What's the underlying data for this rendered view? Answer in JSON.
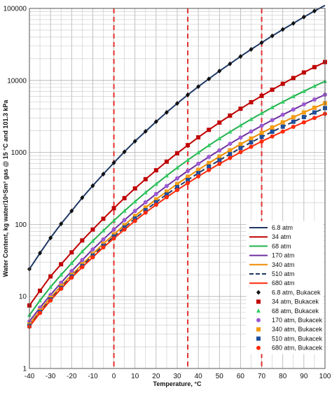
{
  "chart_data": {
    "type": "line",
    "xlabel": "Temperature, °C",
    "ylabel": "Water Content, kg water/10⁶Sm³ gas @ 15 °C and 101.3 kPa",
    "xlim": [
      -40,
      100
    ],
    "ylim": [
      1,
      100000
    ],
    "yscale": "log",
    "x_ticks": [
      -40,
      -30,
      -20,
      -10,
      0,
      10,
      20,
      30,
      40,
      50,
      60,
      70,
      80,
      90,
      100
    ],
    "y_ticks": [
      1,
      10,
      100,
      1000,
      10000,
      100000
    ],
    "y_tick_labels": [
      "1",
      "10",
      "100",
      "1000",
      "10000",
      "100000"
    ],
    "grid": true,
    "legend_position": "bottom-right",
    "vertical_reference_lines": {
      "x": [
        0,
        35,
        70
      ],
      "color": "#e53030",
      "style": "dashed"
    },
    "x": [
      -40,
      -35,
      -30,
      -25,
      -20,
      -15,
      -10,
      -5,
      0,
      5,
      10,
      15,
      20,
      25,
      30,
      35,
      40,
      45,
      50,
      55,
      60,
      65,
      70,
      75,
      80,
      85,
      90,
      95,
      100
    ],
    "series": [
      {
        "name": "6.8 atm",
        "color": "#1f3864",
        "values": [
          24,
          40,
          65,
          102,
          154,
          235,
          345,
          500,
          720,
          1020,
          1430,
          1960,
          2680,
          3600,
          4800,
          6300,
          8200,
          10500,
          13500,
          17000,
          21500,
          27000,
          33500,
          41500,
          51000,
          62000,
          76000,
          92000,
          110000
        ]
      },
      {
        "name": "34 atm",
        "color": "#c00000",
        "values": [
          7.5,
          12,
          19,
          28,
          41,
          60,
          85,
          120,
          168,
          232,
          316,
          425,
          565,
          745,
          975,
          1260,
          1620,
          2060,
          2600,
          3250,
          4040,
          4980,
          6100,
          7420,
          8980,
          10800,
          12900,
          15300,
          18000
        ]
      },
      {
        "name": "68 atm",
        "color": "#22b04c",
        "values": [
          5.5,
          8.8,
          13.5,
          20,
          29,
          42,
          59,
          82,
          113,
          154,
          208,
          277,
          364,
          475,
          613,
          783,
          993,
          1250,
          1560,
          1930,
          2370,
          2890,
          3500,
          4210,
          5040,
          5990,
          7080,
          8330,
          9740
        ]
      },
      {
        "name": "170 atm",
        "color": "#7030a0",
        "values": [
          4.5,
          7,
          10.5,
          15.5,
          22.5,
          32,
          45,
          62,
          85,
          115,
          154,
          203,
          265,
          342,
          437,
          554,
          696,
          868,
          1070,
          1320,
          1610,
          1950,
          2350,
          2810,
          3340,
          3950,
          4650,
          5440,
          6340
        ]
      },
      {
        "name": "340 atm",
        "color": "#f08c00",
        "values": [
          4.1,
          6.4,
          9.6,
          14,
          20,
          28,
          39,
          54,
          73,
          98,
          131,
          172,
          223,
          286,
          364,
          459,
          574,
          712,
          876,
          1070,
          1300,
          1560,
          1870,
          2220,
          2620,
          3080,
          3590,
          4170,
          4820
        ]
      },
      {
        "name": "510 atm",
        "color": "#1f3864",
        "values": [
          3.9,
          6.1,
          9.1,
          13.2,
          19,
          26.5,
          37,
          50.5,
          68,
          91,
          121,
          158,
          204,
          261,
          330,
          414,
          516,
          637,
          780,
          949,
          1150,
          1380,
          1640,
          1940,
          2280,
          2670,
          3100,
          3590,
          4130
        ]
      },
      {
        "name": "680 atm",
        "color": "#ff2a0a",
        "values": [
          3.8,
          5.9,
          8.8,
          12.8,
          18.3,
          25.5,
          35,
          48,
          64,
          85,
          112,
          146,
          188,
          239,
          301,
          375,
          465,
          570,
          694,
          838,
          1010,
          1200,
          1420,
          1670,
          1950,
          2270,
          2620,
          3010,
          3440
        ]
      }
    ],
    "markers": [
      {
        "name": "6.8 atm, Bukacek",
        "shape": "diamond",
        "color": "#111111",
        "series_index": 0
      },
      {
        "name": "34 atm, Bukacek",
        "shape": "square",
        "color": "#c00000",
        "series_index": 1
      },
      {
        "name": "68 atm, Bukacek",
        "shape": "triangle",
        "color": "#33cc66",
        "series_index": 2
      },
      {
        "name": "170 atm, Bukacek",
        "shape": "circle",
        "color": "#9b59d0",
        "series_index": 3
      },
      {
        "name": "340 atm, Bukacek",
        "shape": "square",
        "color": "#f39c12",
        "series_index": 4
      },
      {
        "name": "510 atm, Bukacek",
        "shape": "square",
        "color": "#1f4e9b",
        "series_index": 5
      },
      {
        "name": "680 atm, Bukacek",
        "shape": "circle",
        "color": "#ff2a0a",
        "series_index": 6
      }
    ]
  }
}
